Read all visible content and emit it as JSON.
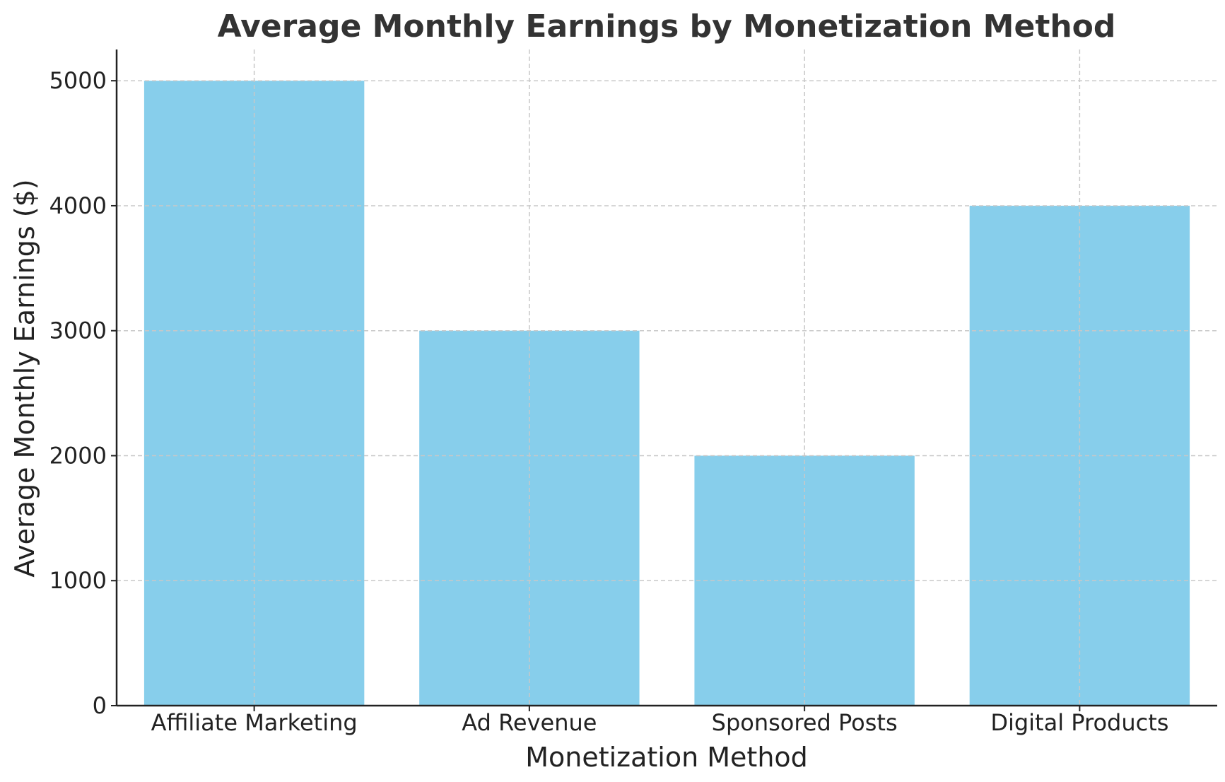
{
  "chart_data": {
    "type": "bar",
    "title": "Average Monthly Earnings by Monetization Method",
    "xlabel": "Monetization Method",
    "ylabel": "Average Monthly Earnings ($)",
    "categories": [
      "Affiliate Marketing",
      "Ad Revenue",
      "Sponsored Posts",
      "Digital Products"
    ],
    "values": [
      5000,
      3000,
      2000,
      4000
    ],
    "ylim": [
      0,
      5250
    ],
    "yticks": [
      0,
      1000,
      2000,
      3000,
      4000,
      5000
    ],
    "grid": true,
    "bar_color": "#87CEEB"
  }
}
